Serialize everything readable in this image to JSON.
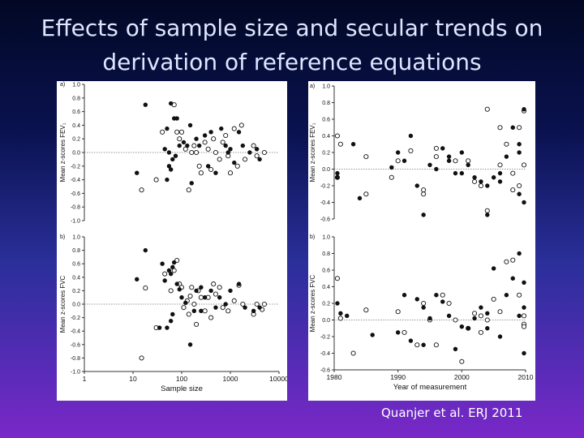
{
  "title_line1": "Effects of sample size and secular trends on",
  "title_line2": "derivation of reference equations",
  "citation": "Quanjer et al. ERJ 2011",
  "colors": {
    "background_top": "#020824",
    "background_bottom": "#7a28c8",
    "panel": "#ffffff",
    "marker": "#111111"
  },
  "chart_data": [
    {
      "type": "scatter",
      "panel_label": "a)",
      "ylabel": "Mean z-scores FEV₁",
      "xlabel": "",
      "xscale": "log",
      "xlim": [
        1,
        10000
      ],
      "ylim": [
        -1.0,
        1.0
      ],
      "yticks": [
        "-1.0",
        "-0.8",
        "-0.6",
        "-0.4",
        "-0.2",
        "0.0",
        "0.2",
        "0.4",
        "0.6",
        "0.8",
        "1.0"
      ],
      "ytick_values": [
        -1.0,
        -0.8,
        -0.6,
        -0.4,
        -0.2,
        0.0,
        0.2,
        0.4,
        0.6,
        0.8,
        1.0
      ],
      "reference_line": 0,
      "points_filled": [
        [
          18,
          0.7
        ],
        [
          12,
          -0.3
        ],
        [
          60,
          0.72
        ],
        [
          70,
          0.5
        ],
        [
          80,
          0.5
        ],
        [
          50,
          0.35
        ],
        [
          45,
          0.05
        ],
        [
          55,
          0.0
        ],
        [
          65,
          -0.1
        ],
        [
          75,
          -0.05
        ],
        [
          90,
          0.1
        ],
        [
          55,
          -0.2
        ],
        [
          60,
          -0.25
        ],
        [
          50,
          -0.4
        ],
        [
          150,
          0.4
        ],
        [
          110,
          0.15
        ],
        [
          130,
          0.1
        ],
        [
          200,
          0.2
        ],
        [
          230,
          0.1
        ],
        [
          300,
          0.25
        ],
        [
          400,
          0.3
        ],
        [
          500,
          -0.3
        ],
        [
          350,
          -0.2
        ],
        [
          650,
          0.35
        ],
        [
          800,
          0.1
        ],
        [
          900,
          0.0
        ],
        [
          1000,
          0.05
        ],
        [
          1500,
          0.3
        ],
        [
          2500,
          0.0
        ],
        [
          3500,
          0.05
        ],
        [
          4000,
          -0.1
        ],
        [
          160,
          -0.45
        ],
        [
          1200,
          -0.15
        ],
        [
          1800,
          0.1
        ]
      ],
      "points_open": [
        [
          15,
          -0.55
        ],
        [
          30,
          -0.4
        ],
        [
          40,
          0.3
        ],
        [
          70,
          0.7
        ],
        [
          80,
          0.3
        ],
        [
          90,
          0.2
        ],
        [
          100,
          0.3
        ],
        [
          120,
          0.05
        ],
        [
          160,
          0.0
        ],
        [
          180,
          0.1
        ],
        [
          200,
          0.0
        ],
        [
          250,
          -0.3
        ],
        [
          300,
          0.15
        ],
        [
          350,
          0.05
        ],
        [
          400,
          -0.25
        ],
        [
          450,
          0.2
        ],
        [
          500,
          0.0
        ],
        [
          600,
          -0.1
        ],
        [
          700,
          0.15
        ],
        [
          800,
          0.25
        ],
        [
          900,
          -0.05
        ],
        [
          1000,
          -0.3
        ],
        [
          1200,
          0.35
        ],
        [
          1400,
          -0.2
        ],
        [
          1700,
          0.4
        ],
        [
          2000,
          -0.1
        ],
        [
          3000,
          0.1
        ],
        [
          3500,
          -0.05
        ],
        [
          5000,
          0.0
        ],
        [
          140,
          -0.55
        ],
        [
          230,
          -0.2
        ]
      ]
    },
    {
      "type": "scatter",
      "panel_label": "a)",
      "ylabel": "Mean z-scores FEV₁",
      "xlabel": "",
      "xlim": [
        1980,
        2010
      ],
      "ylim": [
        -0.6,
        1.0
      ],
      "yticks": [
        "-0.6",
        "-0.4",
        "-0.2",
        "0.0",
        "0.2",
        "0.4",
        "0.6",
        "0.8",
        "1.0"
      ],
      "ytick_values": [
        -0.6,
        -0.4,
        -0.2,
        0.0,
        0.2,
        0.4,
        0.6,
        0.8,
        1.0
      ],
      "reference_line": 0,
      "points_filled": [
        [
          1980.5,
          -0.05
        ],
        [
          1980.5,
          -0.1
        ],
        [
          1983,
          0.3
        ],
        [
          1984,
          -0.35
        ],
        [
          1989,
          0.02
        ],
        [
          1990,
          0.2
        ],
        [
          1991,
          0.1
        ],
        [
          1992,
          0.4
        ],
        [
          1993,
          -0.2
        ],
        [
          1994,
          -0.55
        ],
        [
          1995,
          0.05
        ],
        [
          1996,
          0.0
        ],
        [
          1997,
          0.25
        ],
        [
          1998,
          0.15
        ],
        [
          1999,
          -0.05
        ],
        [
          2000,
          0.2
        ],
        [
          2001,
          0.05
        ],
        [
          2002,
          -0.1
        ],
        [
          2003,
          -0.15
        ],
        [
          2004,
          -0.55
        ],
        [
          2005,
          -0.1
        ],
        [
          2006,
          -0.15
        ],
        [
          2007,
          0.15
        ],
        [
          2008,
          0.5
        ],
        [
          2009,
          0.3
        ],
        [
          2009,
          0.2
        ],
        [
          2009,
          -0.3
        ],
        [
          2010,
          0.72
        ],
        [
          2011,
          -0.4
        ],
        [
          2004,
          -0.2
        ],
        [
          1998,
          0.1
        ],
        [
          2000,
          -0.05
        ],
        [
          2006,
          -0.05
        ]
      ],
      "points_open": [
        [
          1980.5,
          0.4
        ],
        [
          1980.5,
          -0.1
        ],
        [
          1981,
          0.3
        ],
        [
          1985,
          0.15
        ],
        [
          1985,
          -0.3
        ],
        [
          1989,
          -0.1
        ],
        [
          1990,
          0.1
        ],
        [
          1992,
          0.22
        ],
        [
          1994,
          -0.25
        ],
        [
          1994,
          -0.3
        ],
        [
          1996,
          0.25
        ],
        [
          1996,
          0.15
        ],
        [
          1999,
          0.1
        ],
        [
          2001,
          0.1
        ],
        [
          2002,
          -0.15
        ],
        [
          2003,
          -0.2
        ],
        [
          2004,
          0.72
        ],
        [
          2004,
          -0.5
        ],
        [
          2006,
          0.5
        ],
        [
          2006,
          0.05
        ],
        [
          2007,
          0.3
        ],
        [
          2008,
          -0.05
        ],
        [
          2009,
          0.5
        ],
        [
          2009,
          -0.2
        ],
        [
          2010,
          0.7
        ],
        [
          2010,
          0.05
        ],
        [
          2008,
          -0.25
        ]
      ]
    },
    {
      "type": "scatter",
      "panel_label": "b)",
      "ylabel": "Mean z-scores FVC",
      "xlabel": "Sample size",
      "xscale": "log",
      "xlim": [
        1,
        10000
      ],
      "ylim": [
        -1.0,
        1.0
      ],
      "yticks": [
        "-1.0",
        "-0.8",
        "-0.6",
        "-0.4",
        "-0.2",
        "0.0",
        "0.2",
        "0.4",
        "0.6",
        "0.8",
        "1.0"
      ],
      "ytick_values": [
        -1.0,
        -0.8,
        -0.6,
        -0.4,
        -0.2,
        0.0,
        0.2,
        0.4,
        0.6,
        0.8,
        1.0
      ],
      "xticks": [
        "1",
        "10",
        "100",
        "1000",
        "10000"
      ],
      "xtick_values": [
        1,
        10,
        100,
        1000,
        10000
      ],
      "reference_line": 0,
      "points_filled": [
        [
          18,
          0.8
        ],
        [
          12,
          0.37
        ],
        [
          40,
          0.6
        ],
        [
          45,
          0.35
        ],
        [
          55,
          0.5
        ],
        [
          60,
          0.45
        ],
        [
          70,
          0.62
        ],
        [
          65,
          0.55
        ],
        [
          80,
          0.3
        ],
        [
          90,
          0.22
        ],
        [
          100,
          0.1
        ],
        [
          35,
          -0.35
        ],
        [
          50,
          -0.35
        ],
        [
          60,
          -0.25
        ],
        [
          65,
          -0.15
        ],
        [
          120,
          0.02
        ],
        [
          150,
          -0.6
        ],
        [
          200,
          0.2
        ],
        [
          250,
          -0.1
        ],
        [
          300,
          0.1
        ],
        [
          400,
          0.2
        ],
        [
          500,
          -0.05
        ],
        [
          600,
          0.1
        ],
        [
          800,
          0.0
        ],
        [
          1000,
          0.2
        ],
        [
          1500,
          0.3
        ],
        [
          2000,
          -0.05
        ],
        [
          3000,
          -0.1
        ],
        [
          4000,
          -0.05
        ],
        [
          250,
          0.25
        ],
        [
          180,
          -0.1
        ]
      ],
      "points_open": [
        [
          15,
          -0.8
        ],
        [
          18,
          0.24
        ],
        [
          30,
          -0.35
        ],
        [
          45,
          0.45
        ],
        [
          60,
          0.2
        ],
        [
          70,
          0.5
        ],
        [
          80,
          0.65
        ],
        [
          90,
          0.3
        ],
        [
          100,
          0.25
        ],
        [
          110,
          -0.05
        ],
        [
          130,
          0.05
        ],
        [
          140,
          -0.15
        ],
        [
          160,
          0.25
        ],
        [
          180,
          0.0
        ],
        [
          200,
          -0.3
        ],
        [
          220,
          0.2
        ],
        [
          250,
          0.1
        ],
        [
          300,
          -0.1
        ],
        [
          350,
          0.1
        ],
        [
          400,
          -0.2
        ],
        [
          450,
          0.3
        ],
        [
          500,
          0.15
        ],
        [
          600,
          0.25
        ],
        [
          700,
          -0.05
        ],
        [
          900,
          -0.1
        ],
        [
          1200,
          0.05
        ],
        [
          1500,
          0.28
        ],
        [
          1800,
          0.0
        ],
        [
          3000,
          -0.15
        ],
        [
          3500,
          0.0
        ],
        [
          4500,
          -0.08
        ],
        [
          5000,
          0.0
        ],
        [
          150,
          0.12
        ]
      ]
    },
    {
      "type": "scatter",
      "panel_label": "b)",
      "ylabel": "Mean z-scores FVC",
      "xlabel": "Year of measurement",
      "xlim": [
        1980,
        2010
      ],
      "ylim": [
        -0.6,
        1.0
      ],
      "yticks": [
        "-0.6",
        "-0.4",
        "-0.2",
        "0.0",
        "0.2",
        "0.4",
        "0.6",
        "0.8",
        "1.0"
      ],
      "ytick_values": [
        -0.6,
        -0.4,
        -0.2,
        0.0,
        0.2,
        0.4,
        0.6,
        0.8,
        1.0
      ],
      "xticks": [
        "1980",
        "1990",
        "2000",
        "2010"
      ],
      "xtick_values": [
        1980,
        1990,
        2000,
        2010
      ],
      "reference_line": 0,
      "points_filled": [
        [
          1980.5,
          0.2
        ],
        [
          1981,
          0.08
        ],
        [
          1982,
          0.05
        ],
        [
          1986,
          -0.18
        ],
        [
          1990,
          -0.15
        ],
        [
          1991,
          0.3
        ],
        [
          1992,
          -0.25
        ],
        [
          1993,
          0.25
        ],
        [
          1994,
          0.15
        ],
        [
          1994,
          -0.3
        ],
        [
          1995,
          0.02
        ],
        [
          1996,
          0.3
        ],
        [
          1997,
          0.22
        ],
        [
          1998,
          0.05
        ],
        [
          1999,
          -0.35
        ],
        [
          2000,
          -0.08
        ],
        [
          2001,
          -0.1
        ],
        [
          2002,
          0.02
        ],
        [
          2003,
          0.15
        ],
        [
          2005,
          0.62
        ],
        [
          2006,
          -0.2
        ],
        [
          2007,
          0.3
        ],
        [
          2008,
          0.5
        ],
        [
          2009,
          0.8
        ],
        [
          2010,
          0.45
        ],
        [
          2010,
          0.15
        ],
        [
          2011,
          -0.4
        ],
        [
          2004,
          -0.1
        ],
        [
          2009,
          0.05
        ],
        [
          2004,
          0.08
        ]
      ],
      "points_open": [
        [
          1980.5,
          0.5
        ],
        [
          1981,
          0.02
        ],
        [
          1983,
          -0.4
        ],
        [
          1985,
          0.12
        ],
        [
          1990,
          0.1
        ],
        [
          1991,
          -0.15
        ],
        [
          1993,
          -0.3
        ],
        [
          1994,
          0.2
        ],
        [
          1995,
          0.0
        ],
        [
          1996,
          -0.3
        ],
        [
          1997,
          0.3
        ],
        [
          1998,
          0.2
        ],
        [
          1999,
          0.0
        ],
        [
          2000,
          -0.5
        ],
        [
          2001,
          -0.1
        ],
        [
          2002,
          0.08
        ],
        [
          2003,
          0.05
        ],
        [
          2004,
          0.0
        ],
        [
          2005,
          0.25
        ],
        [
          2006,
          0.1
        ],
        [
          2007,
          0.7
        ],
        [
          2008,
          0.72
        ],
        [
          2009,
          0.3
        ],
        [
          2010,
          0.05
        ],
        [
          2010,
          -0.05
        ],
        [
          2011,
          -0.08
        ],
        [
          2003,
          -0.15
        ]
      ]
    }
  ]
}
